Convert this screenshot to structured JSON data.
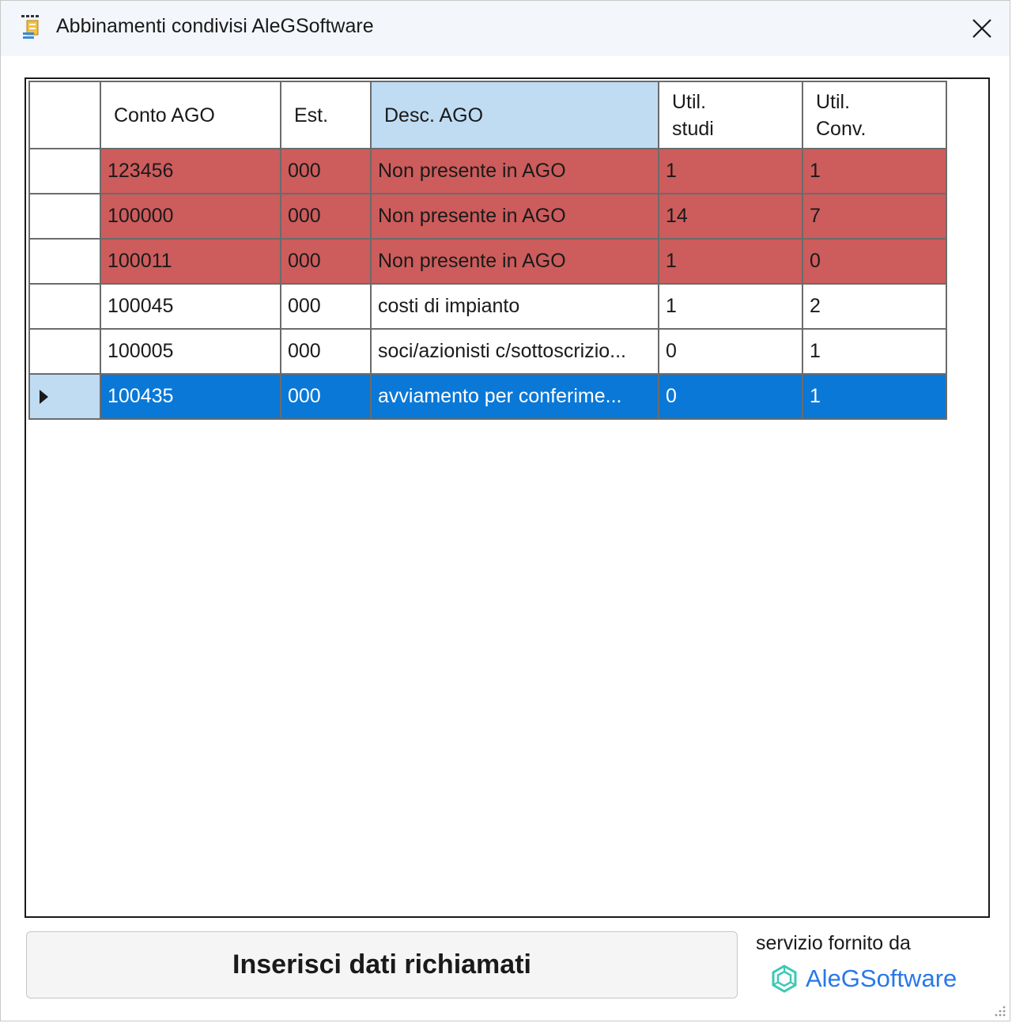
{
  "window": {
    "title": "Abbinamenti condivisi AleGSoftware",
    "icons": {
      "app": "app-icon",
      "close": "close-icon"
    }
  },
  "grid": {
    "columns": [
      "Conto AGO",
      "Est.",
      "Desc. AGO",
      "Util. studi",
      "Util. Conv."
    ],
    "sorted_column": "Desc. AGO",
    "rows": [
      {
        "conto": "123456",
        "est": "000",
        "desc": "Non presente in AGO",
        "studi": "1",
        "conv": "1",
        "state": "missing"
      },
      {
        "conto": "100000",
        "est": "000",
        "desc": "Non presente in AGO",
        "studi": "14",
        "conv": "7",
        "state": "missing"
      },
      {
        "conto": "100011",
        "est": "000",
        "desc": "Non presente in AGO",
        "studi": "1",
        "conv": "0",
        "state": "missing"
      },
      {
        "conto": "100045",
        "est": "000",
        "desc": "costi di impianto",
        "studi": "1",
        "conv": "2",
        "state": "normal"
      },
      {
        "conto": "100005",
        "est": "000",
        "desc": "soci/azionisti c/sottoscrizio...",
        "studi": "0",
        "conv": "1",
        "state": "normal"
      },
      {
        "conto": "100435",
        "est": "000",
        "desc": "avviamento per conferime...",
        "studi": "0",
        "conv": "1",
        "state": "selected"
      }
    ]
  },
  "footer": {
    "insert_button": "Inserisci dati richiamati",
    "provided_by": "servizio fornito da",
    "brand": "AleGSoftware",
    "brand_icon": "hexagon-logo-icon"
  },
  "colors": {
    "missing_row": "#cd5c5c",
    "selected_row": "#0a78d7",
    "sorted_header": "#bfdcf3",
    "brand": "#2878e8",
    "brand_logo": "#3cc8b4"
  }
}
